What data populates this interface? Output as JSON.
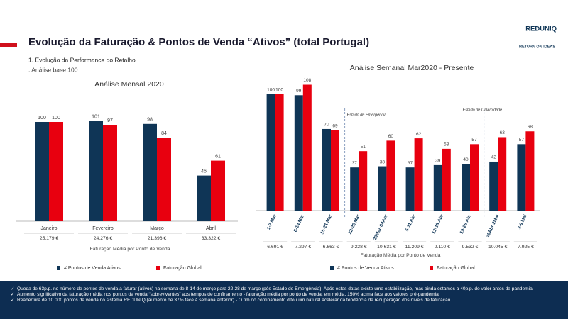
{
  "header": {
    "title": "Evolução da Faturação & Pontos de Venda “Ativos” (total Portugal)",
    "subtitle": "1.  Evolução da Performance do Retalho",
    "note": ". Análise base 100",
    "logo": "REDUNIQ",
    "logo2": "RETURN ON IDEAS"
  },
  "chart_data": [
    {
      "type": "bar",
      "title": "Análise Mensal 2020",
      "categories": [
        "Janeiro",
        "Fevereiro",
        "Março",
        "Abril"
      ],
      "series": [
        {
          "name": "# Pontos de Venda Ativos",
          "color": "#0f3556",
          "values": [
            100,
            101,
            98,
            46
          ]
        },
        {
          "name": "Faturação Global",
          "color": "#e8000f",
          "values": [
            100,
            97,
            84,
            61
          ]
        }
      ],
      "ylim": [
        0,
        115
      ],
      "row_label": "Faturação Média por Ponto de Venda",
      "row_values": [
        "25.179 €",
        "24.276 €",
        "21.396 €",
        "33.322 €"
      ]
    },
    {
      "type": "bar",
      "title": "Análise Semanal Mar2020 - Presente",
      "categories": [
        "1-7 Mar",
        "8-14 Mar",
        "15-21 Mar",
        "22-28 Mar",
        "29Mar-04Abr",
        "5-11 Abr",
        "12-18 Abr",
        "19-25 Abr",
        "26Abr-2Mai",
        "3-9 Mai"
      ],
      "series": [
        {
          "name": "# Pontos de Venda Ativos",
          "color": "#0f3556",
          "values": [
            100,
            99,
            70,
            37,
            38,
            37,
            39,
            40,
            42,
            57
          ]
        },
        {
          "name": "Faturação Global",
          "color": "#e8000f",
          "values": [
            100,
            108,
            69,
            51,
            60,
            62,
            53,
            57,
            63,
            68
          ]
        }
      ],
      "ylim": [
        0,
        115
      ],
      "annotations": [
        {
          "text": "Estado de Emergência",
          "category": "22-28 Mar"
        },
        {
          "text": "Estado de Calamidade",
          "category": "26Abr-2Mai"
        }
      ],
      "row_label": "Faturação Média por Ponto de Venda",
      "row_values": [
        "6.691 €",
        "7.297 €",
        "6.663 €",
        "9.228 €",
        "10.631 €",
        "11.209 €",
        "9.110 €",
        "9.532 €",
        "10.045 €",
        "7.925 €"
      ]
    }
  ],
  "bullets": [
    "Queda de 63p.p. no número de pontos de venda a faturar (ativos) na semana de 8-14 de março para 22-28 de março (pós Estado de Emergência). Após estas datas existe uma estabilização, mas ainda estamos a 40p.p. do valor antes da pandemia",
    "Aumento significativo da faturação média nos pontos de venda “sobreviventes” aos tempos de confinamento - faturação média por ponto de venda, em média, 150% acima face aos valores pré-pandemia",
    "Reabertura de 10.000 pontos de venda no sistema REDUNIQ (aumento de 37% face à semana anterior) - O fim do confinamento ditou um natural acelerar da tendência de recuperação dos níveis de faturação"
  ]
}
